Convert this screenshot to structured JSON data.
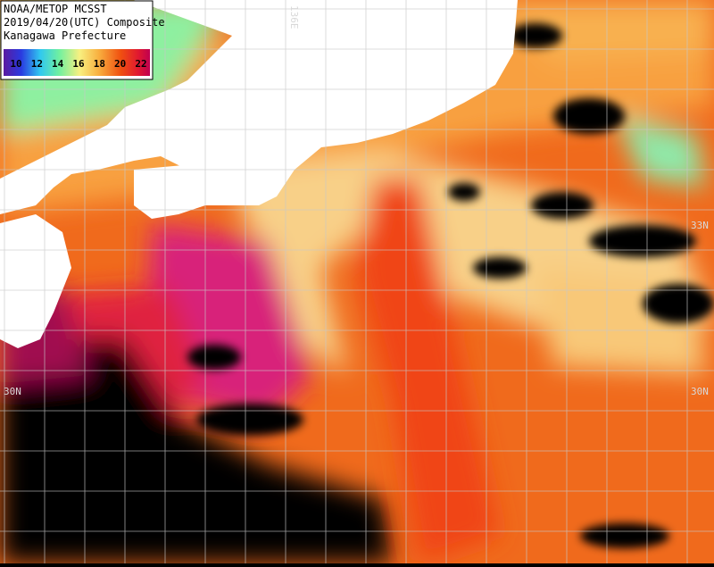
{
  "header": {
    "lines": [
      "NOAA/METOP MCSST",
      "2019/04/20(UTC) Composite",
      "Kanagawa Prefecture"
    ]
  },
  "legend": {
    "ticks": [
      10,
      12,
      14,
      16,
      18,
      20,
      22
    ]
  },
  "grid_labels": {
    "longitude": "136E",
    "latitude_left": "30N",
    "latitude_right": "30N",
    "latitude_right_upper": "33N"
  }
}
